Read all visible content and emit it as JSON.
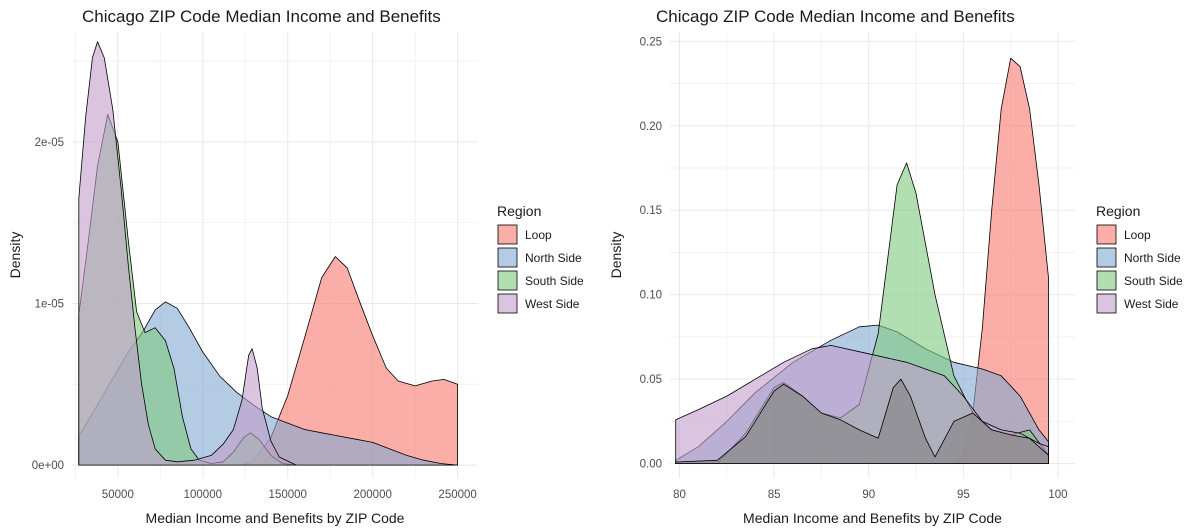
{
  "chart_data": [
    {
      "type": "area",
      "title": "Chicago ZIP Code Median Income and Benefits",
      "xlabel": "Median Income and Benefits by ZIP Code",
      "ylabel": "Density",
      "xlim": [
        23000,
        262000
      ],
      "ylim": [
        -8e-07,
        2.68e-05
      ],
      "x_ticks": [
        {
          "v": 50000,
          "label": "50000"
        },
        {
          "v": 100000,
          "label": "100000"
        },
        {
          "v": 150000,
          "label": "150000"
        },
        {
          "v": 200000,
          "label": "200000"
        },
        {
          "v": 250000,
          "label": "250000"
        }
      ],
      "y_ticks": [
        {
          "v": 0,
          "label": "0e+00"
        },
        {
          "v": 1e-05,
          "label": "1e-05"
        },
        {
          "v": 2e-05,
          "label": "2e-05"
        }
      ],
      "grid": true,
      "legend": {
        "title": "Region",
        "placement": "right"
      },
      "series": [
        {
          "name": "Loop",
          "color": "#F8766D",
          "points": [
            [
              122000,
              0
            ],
            [
              130000,
              3e-07
            ],
            [
              140000,
              1.7e-06
            ],
            [
              150000,
              4.3e-06
            ],
            [
              160000,
              7.9e-06
            ],
            [
              170000,
              1.16e-05
            ],
            [
              178000,
              1.29e-05
            ],
            [
              185000,
              1.22e-05
            ],
            [
              192000,
              1.02e-05
            ],
            [
              200000,
              8e-06
            ],
            [
              208000,
              6e-06
            ],
            [
              215000,
              5.2e-06
            ],
            [
              225000,
              4.9e-06
            ],
            [
              235000,
              5.2e-06
            ],
            [
              242000,
              5.3e-06
            ],
            [
              250000,
              5e-06
            ]
          ]
        },
        {
          "name": "North Side",
          "color": "#80A8D0",
          "points": [
            [
              27000,
              1.8e-06
            ],
            [
              35000,
              3.2e-06
            ],
            [
              45000,
              5e-06
            ],
            [
              55000,
              6.8e-06
            ],
            [
              65000,
              8.3e-06
            ],
            [
              72000,
              9.6e-06
            ],
            [
              78000,
              1.01e-05
            ],
            [
              85000,
              9.7e-06
            ],
            [
              92000,
              8.5e-06
            ],
            [
              100000,
              7e-06
            ],
            [
              110000,
              5.5e-06
            ],
            [
              120000,
              4.5e-06
            ],
            [
              130000,
              3.7e-06
            ],
            [
              140000,
              3e-06
            ],
            [
              150000,
              2.6e-06
            ],
            [
              160000,
              2.2e-06
            ],
            [
              170000,
              2e-06
            ],
            [
              180000,
              1.8e-06
            ],
            [
              190000,
              1.6e-06
            ],
            [
              200000,
              1.4e-06
            ],
            [
              210000,
              1e-06
            ],
            [
              220000,
              6e-07
            ],
            [
              230000,
              3e-07
            ],
            [
              240000,
              1e-07
            ],
            [
              250000,
              0
            ]
          ]
        },
        {
          "name": "South Side",
          "color": "#7FC97F",
          "points": [
            [
              27000,
              9.3e-06
            ],
            [
              33000,
              1.42e-05
            ],
            [
              38000,
              1.85e-05
            ],
            [
              44000,
              2.17e-05
            ],
            [
              50000,
              2e-05
            ],
            [
              56000,
              1.4e-05
            ],
            [
              61000,
              9.5e-06
            ],
            [
              66000,
              8.2e-06
            ],
            [
              72000,
              8.5e-06
            ],
            [
              78000,
              7.7e-06
            ],
            [
              83000,
              6e-06
            ],
            [
              88000,
              3e-06
            ],
            [
              93000,
              1e-06
            ],
            [
              98000,
              3e-07
            ],
            [
              105000,
              1e-07
            ],
            [
              112000,
              2e-07
            ],
            [
              118000,
              8e-07
            ],
            [
              124000,
              1.7e-06
            ],
            [
              128000,
              2e-06
            ],
            [
              133000,
              1.6e-06
            ],
            [
              140000,
              6e-07
            ],
            [
              147000,
              1e-07
            ],
            [
              155000,
              0
            ]
          ]
        },
        {
          "name": "West Side",
          "color": "#C29CCB",
          "points": [
            [
              27000,
              1.65e-05
            ],
            [
              31000,
              2.15e-05
            ],
            [
              35000,
              2.52e-05
            ],
            [
              38000,
              2.62e-05
            ],
            [
              42000,
              2.52e-05
            ],
            [
              47000,
              2.2e-05
            ],
            [
              52000,
              1.7e-05
            ],
            [
              56000,
              1.25e-05
            ],
            [
              60000,
              8.5e-06
            ],
            [
              64000,
              5e-06
            ],
            [
              68000,
              2.5e-06
            ],
            [
              72000,
              1e-06
            ],
            [
              78000,
              3e-07
            ],
            [
              85000,
              2e-07
            ],
            [
              95000,
              3e-07
            ],
            [
              105000,
              6e-07
            ],
            [
              112000,
              1.3e-06
            ],
            [
              118000,
              2.2e-06
            ],
            [
              123000,
              4e-06
            ],
            [
              127000,
              6.8e-06
            ],
            [
              129000,
              7.2e-06
            ],
            [
              132000,
              6e-06
            ],
            [
              135000,
              3.5e-06
            ],
            [
              140000,
              1.5e-06
            ],
            [
              145000,
              5e-07
            ],
            [
              155000,
              0
            ]
          ]
        }
      ]
    },
    {
      "type": "area",
      "title": "Chicago ZIP Code Median Income and Benefits",
      "xlabel": "Median Income and Benefits by ZIP Code",
      "ylabel": "Density",
      "xlim": [
        79.5,
        100.9
      ],
      "ylim": [
        -0.0085,
        0.2555
      ],
      "x_ticks": [
        {
          "v": 80,
          "label": "80"
        },
        {
          "v": 85,
          "label": "85"
        },
        {
          "v": 90,
          "label": "90"
        },
        {
          "v": 95,
          "label": "95"
        },
        {
          "v": 100,
          "label": "100"
        }
      ],
      "y_ticks": [
        {
          "v": 0,
          "label": "0.00"
        },
        {
          "v": 0.05,
          "label": "0.05"
        },
        {
          "v": 0.1,
          "label": "0.10"
        },
        {
          "v": 0.15,
          "label": "0.15"
        },
        {
          "v": 0.2,
          "label": "0.20"
        },
        {
          "v": 0.25,
          "label": "0.25"
        }
      ],
      "grid": true,
      "legend": {
        "title": "Region",
        "placement": "right"
      },
      "series": [
        {
          "name": "Loop",
          "color": "#F8766D",
          "points": [
            [
              94.5,
              0
            ],
            [
              95,
              0.005
            ],
            [
              95.5,
              0.03
            ],
            [
              96,
              0.08
            ],
            [
              96.5,
              0.15
            ],
            [
              97,
              0.21
            ],
            [
              97.5,
              0.24
            ],
            [
              98,
              0.235
            ],
            [
              98.5,
              0.21
            ],
            [
              99,
              0.165
            ],
            [
              99.5,
              0.11
            ]
          ]
        },
        {
          "name": "North Side",
          "color": "#80A8D0",
          "points": [
            [
              79.8,
              0.002
            ],
            [
              81,
              0.01
            ],
            [
              82.5,
              0.025
            ],
            [
              84,
              0.042
            ],
            [
              86,
              0.06
            ],
            [
              88,
              0.073
            ],
            [
              89.5,
              0.081
            ],
            [
              90.5,
              0.082
            ],
            [
              91.5,
              0.078
            ],
            [
              93,
              0.068
            ],
            [
              94.5,
              0.06
            ],
            [
              96,
              0.056
            ],
            [
              97,
              0.052
            ],
            [
              98,
              0.04
            ],
            [
              99,
              0.02
            ],
            [
              99.5,
              0.013
            ]
          ]
        },
        {
          "name": "South Side",
          "color": "#7FC97F",
          "points": [
            [
              79.8,
              0
            ],
            [
              82,
              0
            ],
            [
              83.5,
              0.018
            ],
            [
              85,
              0.045
            ],
            [
              85.5,
              0.048
            ],
            [
              86.5,
              0.04
            ],
            [
              87.5,
              0.03
            ],
            [
              88.5,
              0.027
            ],
            [
              89.5,
              0.035
            ],
            [
              90.5,
              0.077
            ],
            [
              91.5,
              0.165
            ],
            [
              92,
              0.178
            ],
            [
              92.5,
              0.16
            ],
            [
              93.5,
              0.1
            ],
            [
              94.5,
              0.052
            ],
            [
              95.5,
              0.03
            ],
            [
              96.5,
              0.02
            ],
            [
              97.5,
              0.017
            ],
            [
              98.5,
              0.02
            ],
            [
              99.5,
              0.005
            ]
          ]
        },
        {
          "name": "West Side",
          "color": "#C29CCB",
          "points": [
            [
              79.8,
              0.026
            ],
            [
              81,
              0.032
            ],
            [
              82.5,
              0.04
            ],
            [
              84,
              0.05
            ],
            [
              85.5,
              0.06
            ],
            [
              87,
              0.068
            ],
            [
              88,
              0.07
            ],
            [
              90,
              0.065
            ],
            [
              92,
              0.06
            ],
            [
              94,
              0.052
            ],
            [
              95,
              0.04
            ],
            [
              96,
              0.025
            ],
            [
              97,
              0.02
            ],
            [
              98,
              0.018
            ],
            [
              99,
              0.012
            ],
            [
              99.5,
              0.01
            ]
          ]
        },
        {
          "name": "",
          "color": "#808080",
          "points": [
            [
              79.8,
              0.001
            ],
            [
              82,
              0.002
            ],
            [
              83.5,
              0.016
            ],
            [
              85,
              0.043
            ],
            [
              85.5,
              0.047
            ],
            [
              86.5,
              0.04
            ],
            [
              87.5,
              0.03
            ],
            [
              88.5,
              0.026
            ],
            [
              89.5,
              0.02
            ],
            [
              90.5,
              0.015
            ],
            [
              91.3,
              0.045
            ],
            [
              91.7,
              0.05
            ],
            [
              92.2,
              0.04
            ],
            [
              93,
              0.015
            ],
            [
              93.5,
              0.004
            ],
            [
              94.5,
              0.025
            ],
            [
              95.5,
              0.03
            ],
            [
              96.5,
              0.02
            ],
            [
              97.5,
              0.017
            ],
            [
              98.5,
              0.015
            ],
            [
              99.5,
              0.005
            ]
          ]
        }
      ]
    }
  ]
}
